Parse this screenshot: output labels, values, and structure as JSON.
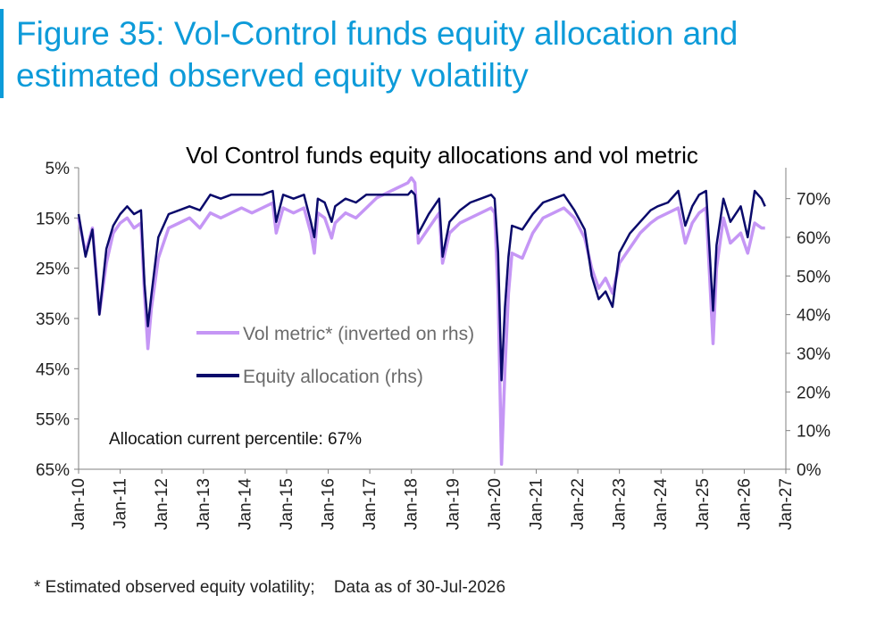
{
  "figure": {
    "title": "Figure 35: Vol-Control funds equity allocation and estimated observed equity volatility",
    "footnote": "* Estimated observed equity volatility;    Data as of 30-Jul-2026"
  },
  "chart_data": {
    "type": "line",
    "title": "Vol Control funds equity allocations and vol metric",
    "annotation": "Allocation current percentile: 67%",
    "x_range": [
      "2010-01",
      "2027-01"
    ],
    "x_ticks": [
      "Jan-10",
      "Jan-11",
      "Jan-12",
      "Jan-13",
      "Jan-14",
      "Jan-15",
      "Jan-16",
      "Jan-17",
      "Jan-18",
      "Jan-19",
      "Jan-20",
      "Jan-21",
      "Jan-22",
      "Jan-23",
      "Jan-24",
      "Jan-25",
      "Jan-26",
      "Jan-27"
    ],
    "y_left": {
      "inverted": true,
      "range": [
        5,
        65
      ],
      "ticks": [
        "5%",
        "15%",
        "25%",
        "35%",
        "45%",
        "55%",
        "65%"
      ]
    },
    "y_right": {
      "range": [
        0,
        78
      ],
      "ticks": [
        "0%",
        "10%",
        "20%",
        "30%",
        "40%",
        "50%",
        "60%",
        "70%"
      ]
    },
    "legend_placement": "center-left",
    "colors": {
      "vol_metric": "#c596f5",
      "equity_allocation": "#0a0a6b"
    },
    "series": [
      {
        "name": "Vol metric* (inverted on rhs)",
        "axis": "left",
        "color": "#c596f5",
        "x": [
          "2010-01",
          "2010-03",
          "2010-05",
          "2010-07",
          "2010-09",
          "2010-11",
          "2011-01",
          "2011-03",
          "2011-05",
          "2011-07",
          "2011-08",
          "2011-09",
          "2011-10",
          "2011-12",
          "2012-03",
          "2012-06",
          "2012-09",
          "2012-12",
          "2013-03",
          "2013-06",
          "2013-09",
          "2013-12",
          "2014-03",
          "2014-06",
          "2014-09",
          "2014-10",
          "2014-12",
          "2015-03",
          "2015-06",
          "2015-08",
          "2015-09",
          "2015-10",
          "2015-12",
          "2016-02",
          "2016-03",
          "2016-06",
          "2016-09",
          "2016-12",
          "2017-03",
          "2017-06",
          "2017-09",
          "2017-12",
          "2018-01",
          "2018-02",
          "2018-03",
          "2018-06",
          "2018-09",
          "2018-10",
          "2018-12",
          "2019-03",
          "2019-06",
          "2019-09",
          "2019-12",
          "2020-01",
          "2020-02",
          "2020-03",
          "2020-04",
          "2020-05",
          "2020-06",
          "2020-09",
          "2020-12",
          "2021-03",
          "2021-06",
          "2021-09",
          "2021-12",
          "2022-03",
          "2022-05",
          "2022-07",
          "2022-09",
          "2022-11",
          "2023-01",
          "2023-04",
          "2023-07",
          "2023-10",
          "2023-12",
          "2024-03",
          "2024-06",
          "2024-08",
          "2024-10",
          "2024-12",
          "2025-02",
          "2025-04",
          "2025-05",
          "2025-07",
          "2025-09",
          "2025-12",
          "2026-02",
          "2026-04",
          "2026-06",
          "2026-07"
        ],
        "values": [
          15,
          22,
          17,
          34,
          24,
          18,
          16,
          15,
          17,
          16,
          30,
          41,
          33,
          23,
          17,
          16,
          15,
          17,
          14,
          15,
          14,
          13,
          14,
          13,
          12,
          18,
          13,
          14,
          13,
          18,
          22,
          14,
          15,
          19,
          16,
          14,
          15,
          13,
          11,
          10,
          9,
          8,
          7,
          8,
          20,
          17,
          14,
          24,
          18,
          16,
          15,
          14,
          13,
          14,
          30,
          64,
          45,
          30,
          22,
          23,
          18,
          15,
          14,
          13,
          15,
          19,
          25,
          29,
          27,
          30,
          24,
          21,
          18,
          16,
          15,
          14,
          13,
          20,
          16,
          14,
          13,
          40,
          25,
          15,
          20,
          18,
          22,
          16,
          17,
          17
        ]
      },
      {
        "name": "Equity allocation (rhs)",
        "axis": "right",
        "color": "#0a0a6b",
        "x": [
          "2010-01",
          "2010-03",
          "2010-05",
          "2010-07",
          "2010-09",
          "2010-11",
          "2011-01",
          "2011-03",
          "2011-05",
          "2011-07",
          "2011-08",
          "2011-09",
          "2011-10",
          "2011-12",
          "2012-03",
          "2012-06",
          "2012-09",
          "2012-12",
          "2013-03",
          "2013-06",
          "2013-09",
          "2013-12",
          "2014-03",
          "2014-06",
          "2014-09",
          "2014-10",
          "2014-12",
          "2015-03",
          "2015-06",
          "2015-08",
          "2015-09",
          "2015-10",
          "2015-12",
          "2016-02",
          "2016-03",
          "2016-06",
          "2016-09",
          "2016-12",
          "2017-03",
          "2017-06",
          "2017-09",
          "2017-12",
          "2018-01",
          "2018-02",
          "2018-03",
          "2018-06",
          "2018-09",
          "2018-10",
          "2018-12",
          "2019-03",
          "2019-06",
          "2019-09",
          "2019-12",
          "2020-01",
          "2020-02",
          "2020-03",
          "2020-04",
          "2020-05",
          "2020-06",
          "2020-09",
          "2020-12",
          "2021-03",
          "2021-06",
          "2021-09",
          "2021-12",
          "2022-03",
          "2022-05",
          "2022-07",
          "2022-09",
          "2022-11",
          "2023-01",
          "2023-04",
          "2023-07",
          "2023-10",
          "2023-12",
          "2024-03",
          "2024-06",
          "2024-08",
          "2024-10",
          "2024-12",
          "2025-02",
          "2025-04",
          "2025-05",
          "2025-07",
          "2025-09",
          "2025-12",
          "2026-02",
          "2026-04",
          "2026-06",
          "2026-07"
        ],
        "values": [
          66,
          55,
          62,
          40,
          57,
          63,
          66,
          68,
          66,
          67,
          48,
          37,
          45,
          60,
          66,
          67,
          68,
          67,
          71,
          70,
          71,
          71,
          71,
          71,
          72,
          64,
          71,
          70,
          71,
          64,
          60,
          70,
          69,
          64,
          68,
          70,
          69,
          71,
          71,
          71,
          71,
          71,
          72,
          71,
          61,
          66,
          70,
          55,
          64,
          67,
          69,
          70,
          71,
          70,
          56,
          23,
          42,
          55,
          63,
          62,
          66,
          69,
          70,
          71,
          67,
          62,
          50,
          44,
          46,
          42,
          56,
          61,
          64,
          67,
          68,
          69,
          72,
          63,
          68,
          71,
          72,
          41,
          58,
          70,
          64,
          68,
          60,
          72,
          70,
          68
        ]
      }
    ]
  }
}
